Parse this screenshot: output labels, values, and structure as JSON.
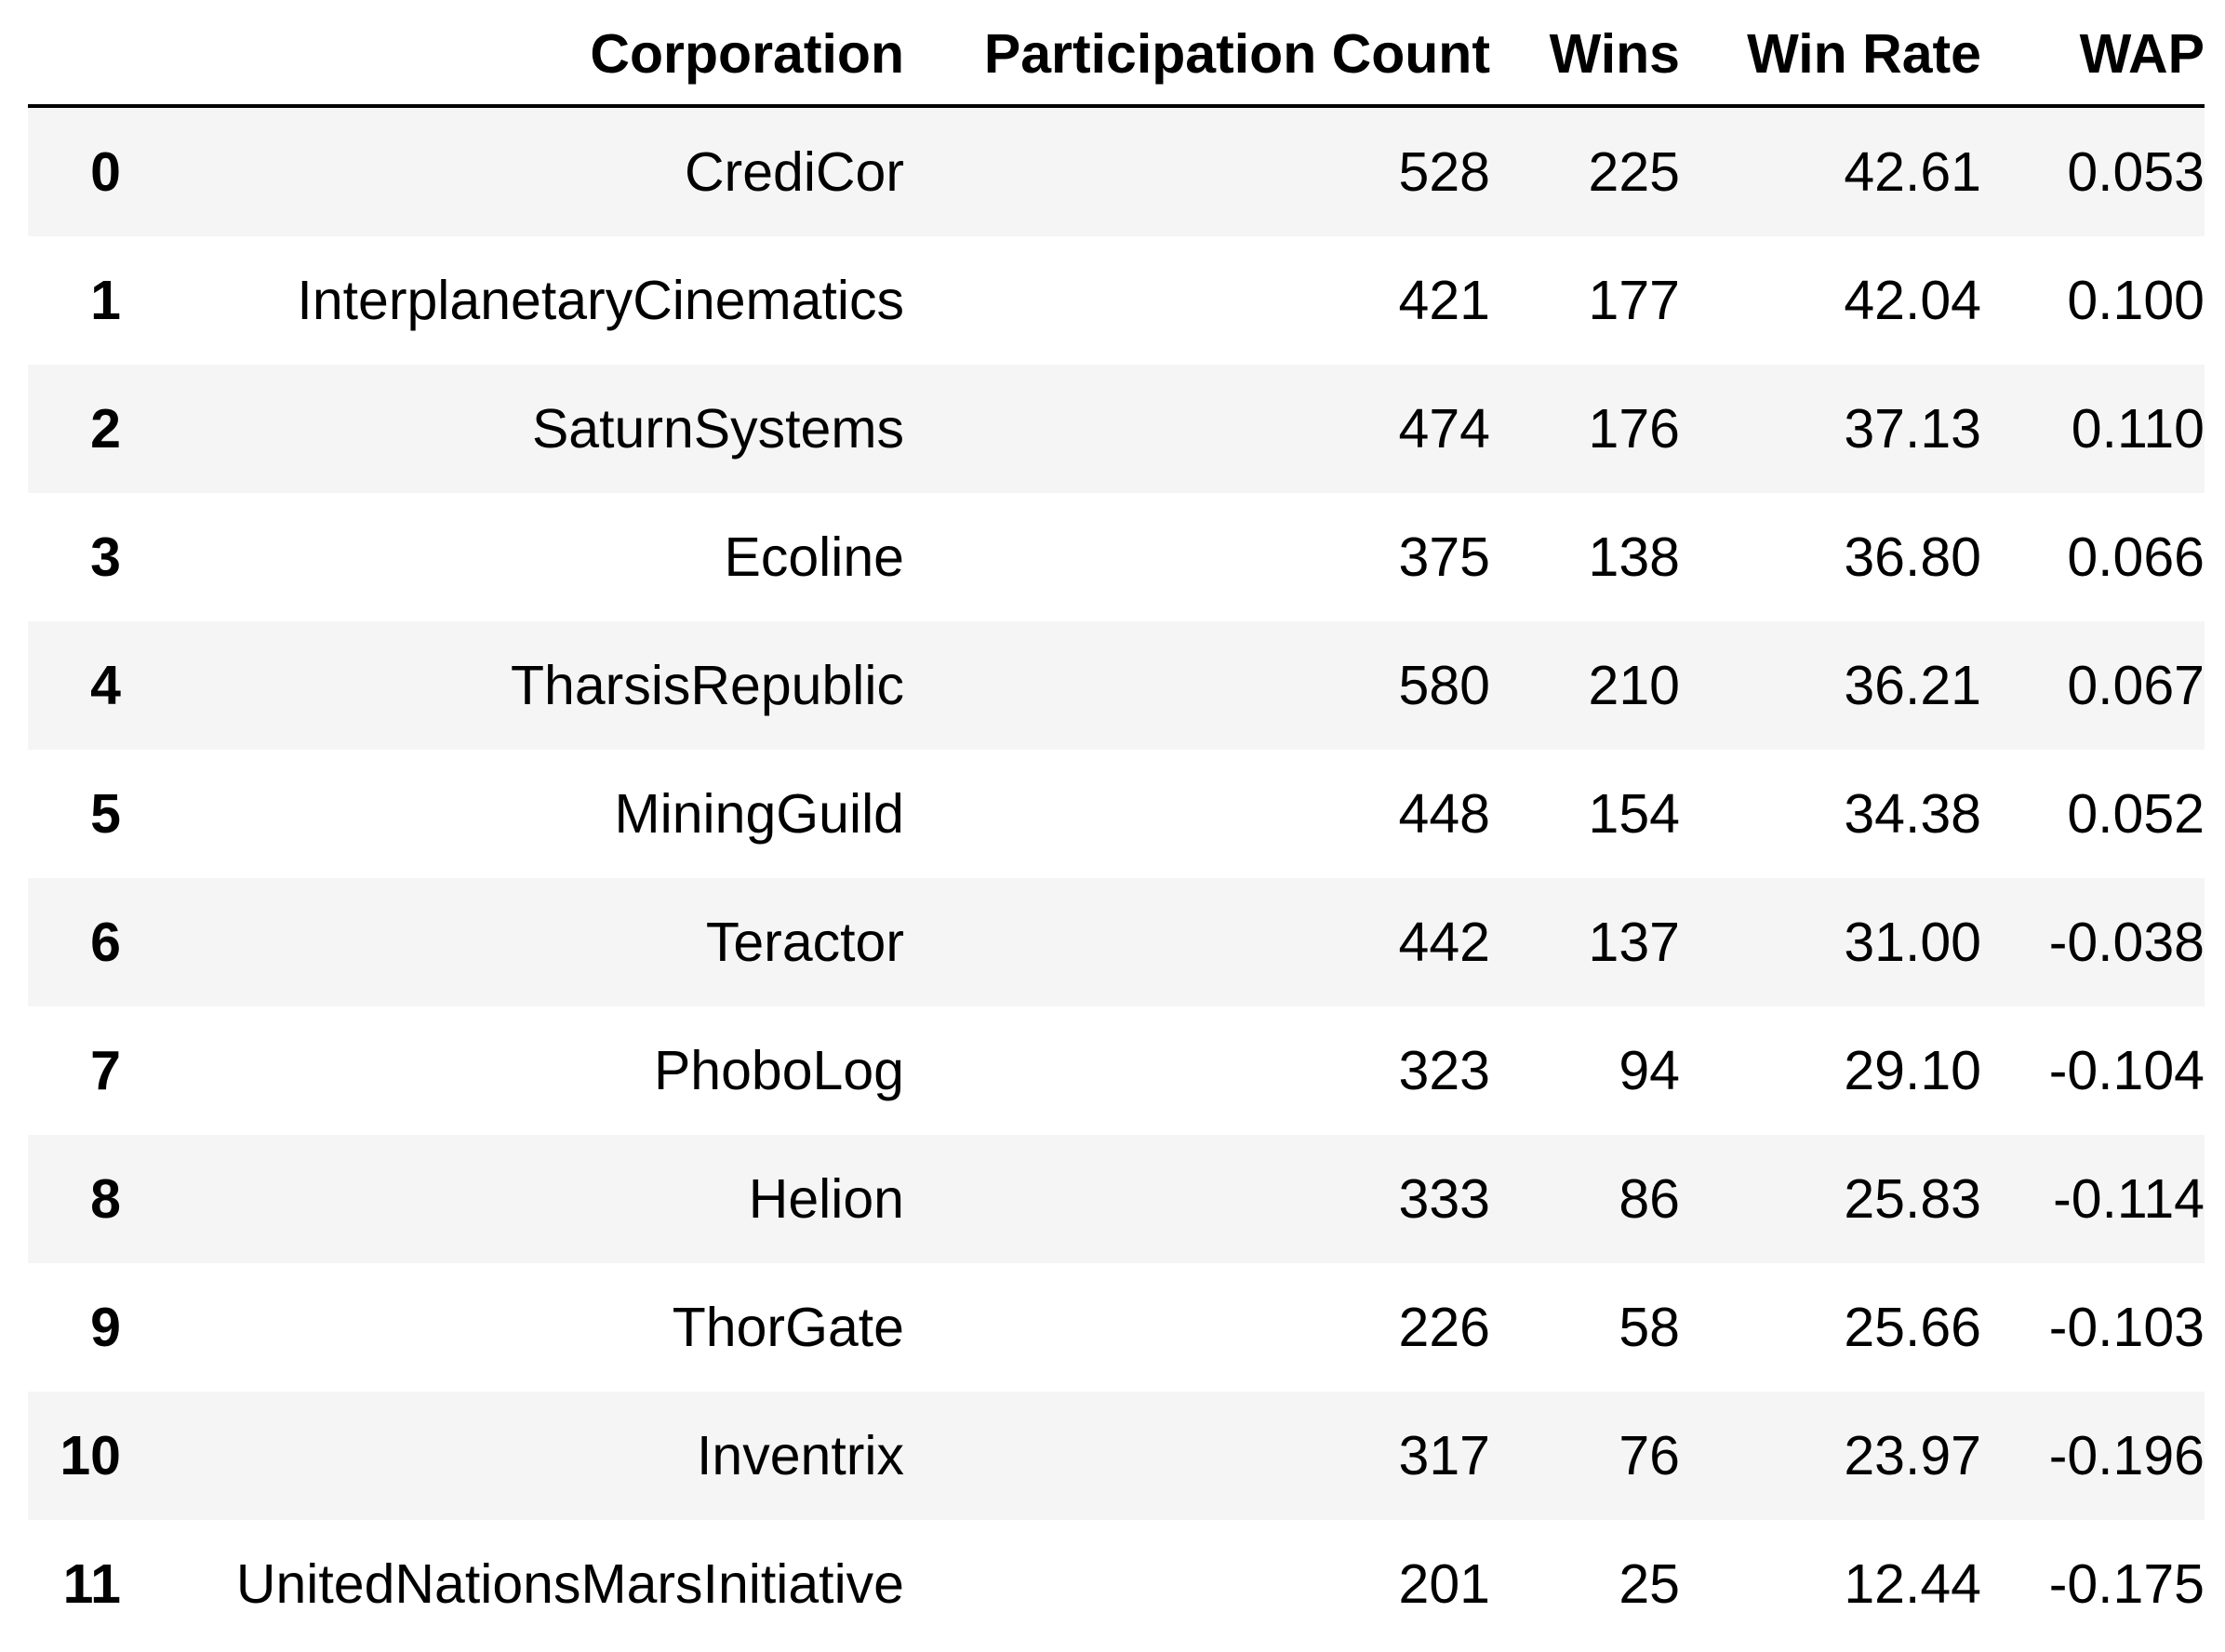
{
  "table": {
    "columns": [
      "Corporation",
      "Participation Count",
      "Wins",
      "Win Rate",
      "WAP"
    ],
    "rows": [
      {
        "index": "0",
        "corporation": "CrediCor",
        "participation": "528",
        "wins": "225",
        "win_rate": "42.61",
        "wap": "0.053"
      },
      {
        "index": "1",
        "corporation": "InterplanetaryCinematics",
        "participation": "421",
        "wins": "177",
        "win_rate": "42.04",
        "wap": "0.100"
      },
      {
        "index": "2",
        "corporation": "SaturnSystems",
        "participation": "474",
        "wins": "176",
        "win_rate": "37.13",
        "wap": "0.110"
      },
      {
        "index": "3",
        "corporation": "Ecoline",
        "participation": "375",
        "wins": "138",
        "win_rate": "36.80",
        "wap": "0.066"
      },
      {
        "index": "4",
        "corporation": "TharsisRepublic",
        "participation": "580",
        "wins": "210",
        "win_rate": "36.21",
        "wap": "0.067"
      },
      {
        "index": "5",
        "corporation": "MiningGuild",
        "participation": "448",
        "wins": "154",
        "win_rate": "34.38",
        "wap": "0.052"
      },
      {
        "index": "6",
        "corporation": "Teractor",
        "participation": "442",
        "wins": "137",
        "win_rate": "31.00",
        "wap": "-0.038"
      },
      {
        "index": "7",
        "corporation": "PhoboLog",
        "participation": "323",
        "wins": "94",
        "win_rate": "29.10",
        "wap": "-0.104"
      },
      {
        "index": "8",
        "corporation": "Helion",
        "participation": "333",
        "wins": "86",
        "win_rate": "25.83",
        "wap": "-0.114"
      },
      {
        "index": "9",
        "corporation": "ThorGate",
        "participation": "226",
        "wins": "58",
        "win_rate": "25.66",
        "wap": "-0.103"
      },
      {
        "index": "10",
        "corporation": "Inventrix",
        "participation": "317",
        "wins": "76",
        "win_rate": "23.97",
        "wap": "-0.196"
      },
      {
        "index": "11",
        "corporation": "UnitedNationsMarsInitiative",
        "participation": "201",
        "wins": "25",
        "win_rate": "12.44",
        "wap": "-0.175"
      }
    ]
  }
}
